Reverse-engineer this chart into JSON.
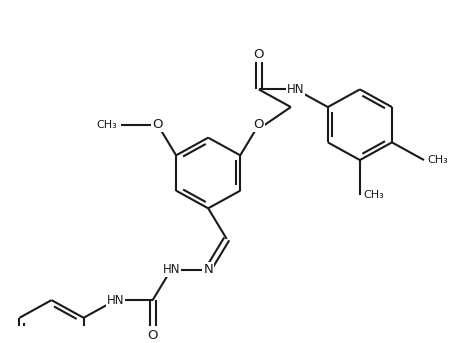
{
  "bg_color": "#ffffff",
  "line_color": "#1a1a1a",
  "line_width": 1.5,
  "figsize": [
    4.57,
    3.43
  ],
  "dpi": 100,
  "label_fontsize": 8.5,
  "label_color": "#1a1a1a",
  "xlim": [
    0,
    10
  ],
  "ylim": [
    0,
    7.5
  ]
}
